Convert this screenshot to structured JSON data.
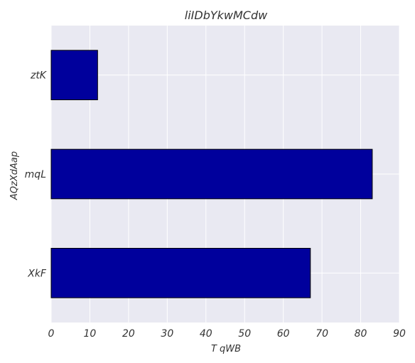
{
  "chart_data": {
    "type": "bar",
    "orientation": "horizontal",
    "title": "liIDbYkwMCdw",
    "xlabel": "T qWB",
    "ylabel": "AQzXdAap",
    "categories": [
      "ztK",
      "mqL",
      "XkF"
    ],
    "values": [
      12,
      83,
      67
    ],
    "xlim": [
      0,
      90
    ],
    "xticks": [
      0,
      10,
      20,
      30,
      40,
      50,
      60,
      70,
      80,
      90
    ],
    "grid": true,
    "legend": "none",
    "colors": {
      "bar_fill": "#00009c",
      "bar_edge": "#000000",
      "plot_background": "#e9e9f2",
      "grid": "#ffffff",
      "text": "#333333"
    }
  }
}
